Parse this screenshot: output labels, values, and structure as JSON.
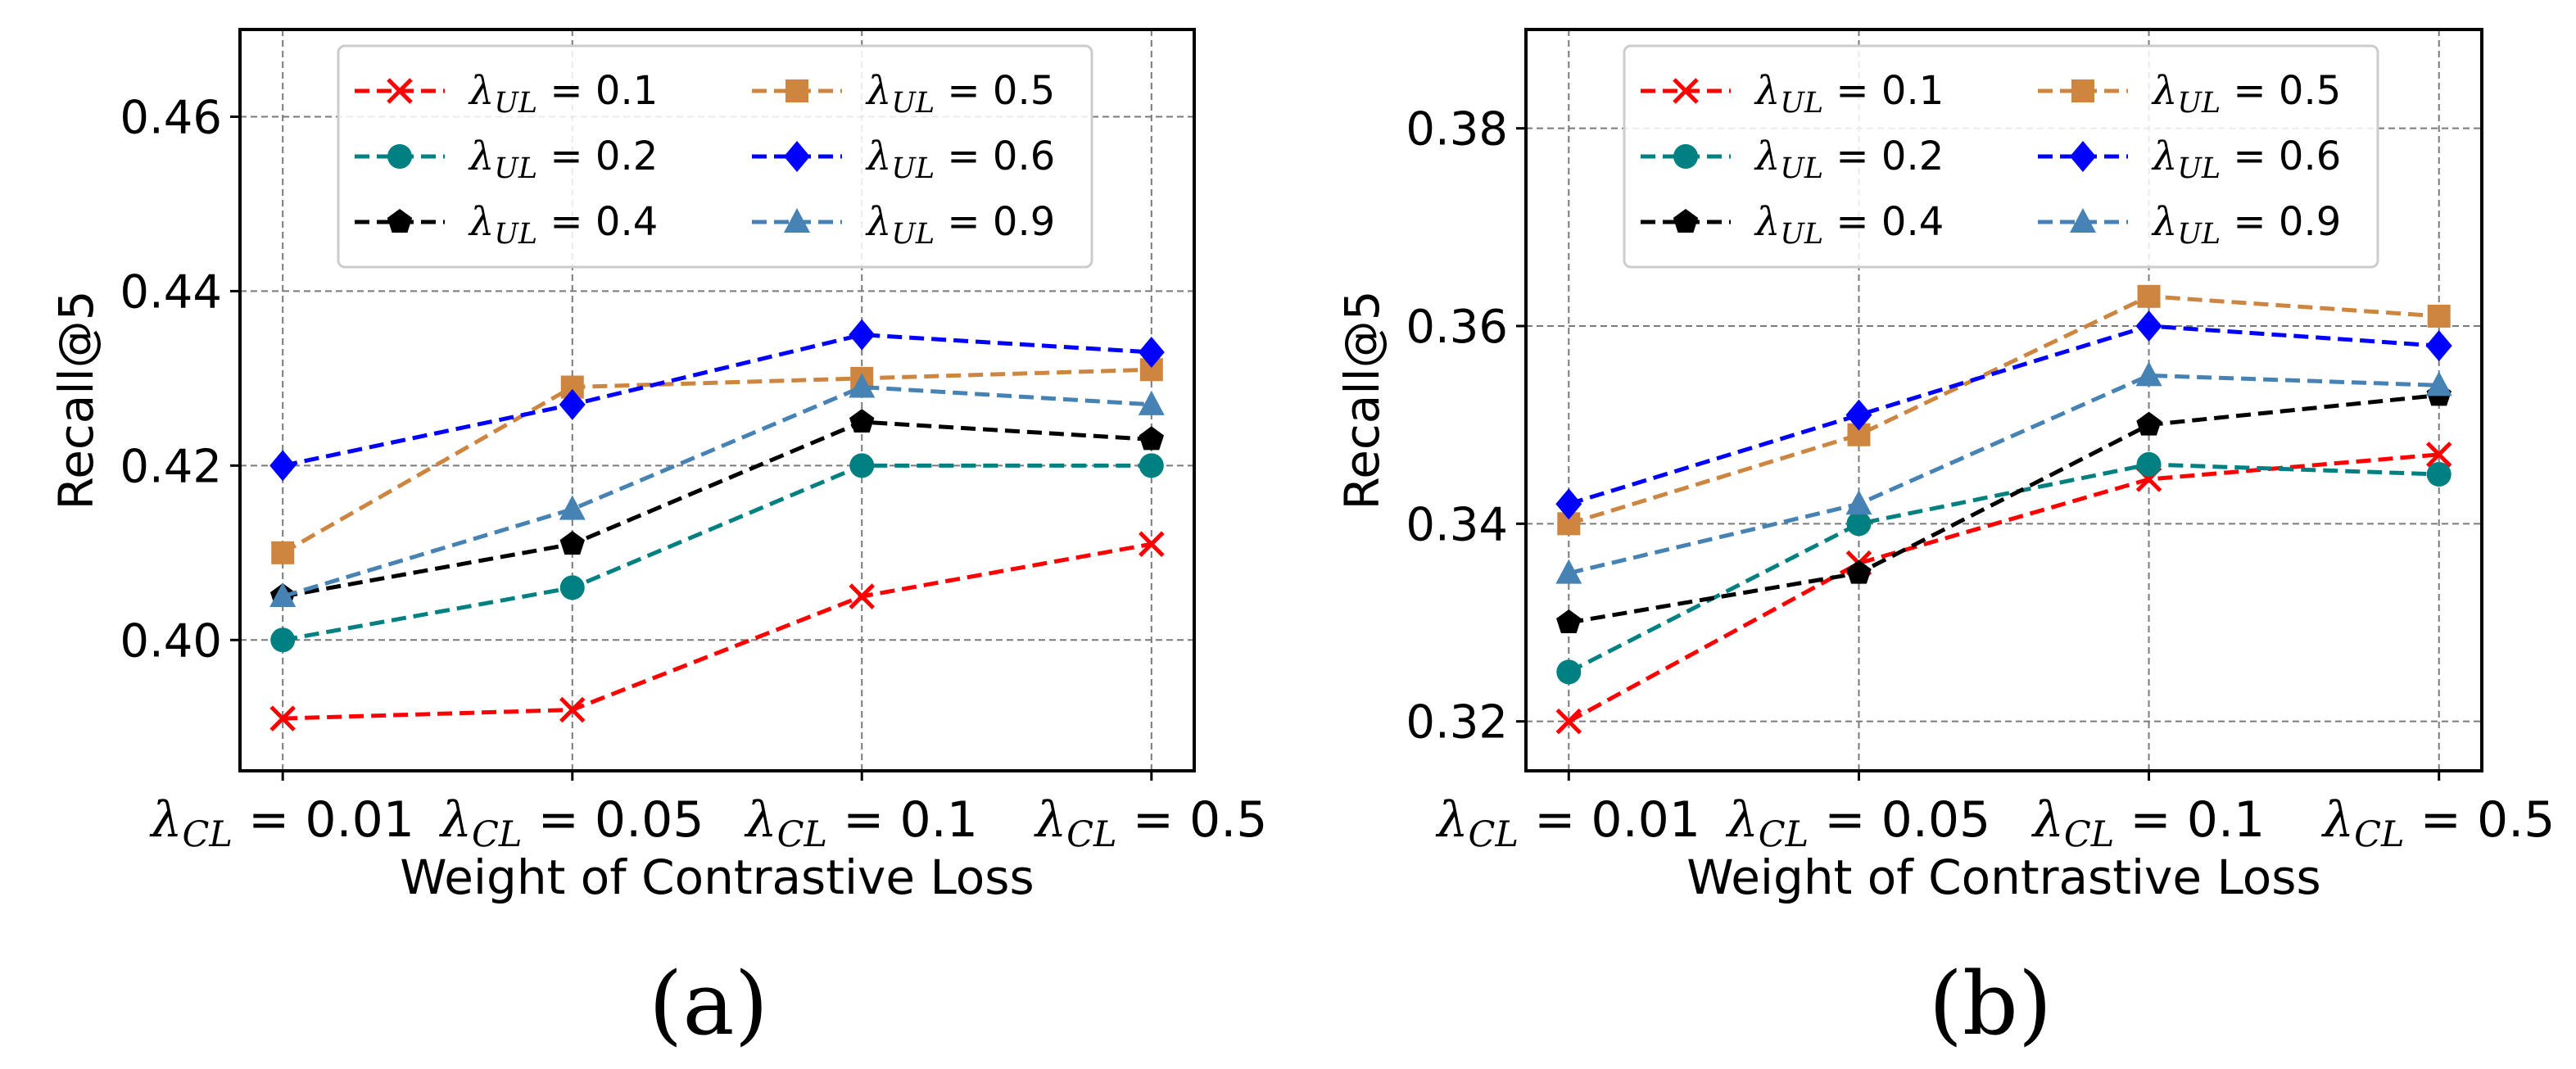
{
  "chart_data": [
    {
      "type": "line",
      "panel": "(a)",
      "xlabel": "Weight of Contrastive Loss",
      "ylabel": "Recall@5",
      "categories": [
        {
          "sym": "λ",
          "sub": "CL",
          "rest": " = 0.01"
        },
        {
          "sym": "λ",
          "sub": "CL",
          "rest": " = 0.05"
        },
        {
          "sym": "λ",
          "sub": "CL",
          "rest": " = 0.1"
        },
        {
          "sym": "λ",
          "sub": "CL",
          "rest": " = 0.5"
        }
      ],
      "ylim": [
        0.385,
        0.47
      ],
      "yticks": [
        0.4,
        0.42,
        0.44,
        0.46
      ],
      "ytick_labels": [
        "0.40",
        "0.42",
        "0.44",
        "0.46"
      ],
      "grid": true,
      "legend_position": "top",
      "series": [
        {
          "name": "λUL = 0.1",
          "sym": "λ",
          "sub": "UL",
          "rest": " = 0.1",
          "color": "#ff0000",
          "marker": "x",
          "values": [
            0.391,
            0.392,
            0.405,
            0.411
          ]
        },
        {
          "name": "λUL = 0.2",
          "sym": "λ",
          "sub": "UL",
          "rest": " = 0.2",
          "color": "#008080",
          "marker": "circle",
          "values": [
            0.4,
            0.406,
            0.42,
            0.42
          ]
        },
        {
          "name": "λUL = 0.4",
          "sym": "λ",
          "sub": "UL",
          "rest": " = 0.4",
          "color": "#000000",
          "marker": "pentagon",
          "values": [
            0.405,
            0.411,
            0.425,
            0.423
          ]
        },
        {
          "name": "λUL = 0.5",
          "sym": "λ",
          "sub": "UL",
          "rest": " = 0.5",
          "color": "#cd853f",
          "marker": "square",
          "values": [
            0.41,
            0.429,
            0.43,
            0.431
          ]
        },
        {
          "name": "λUL = 0.6",
          "sym": "λ",
          "sub": "UL",
          "rest": " = 0.6",
          "color": "#0000ff",
          "marker": "diamond",
          "values": [
            0.42,
            0.427,
            0.435,
            0.433
          ]
        },
        {
          "name": "λUL = 0.9",
          "sym": "λ",
          "sub": "UL",
          "rest": " = 0.9",
          "color": "#4682b4",
          "marker": "triangle",
          "values": [
            0.405,
            0.415,
            0.429,
            0.427
          ]
        }
      ]
    },
    {
      "type": "line",
      "panel": "(b)",
      "xlabel": "Weight of Contrastive Loss",
      "ylabel": "Recall@5",
      "categories": [
        {
          "sym": "λ",
          "sub": "CL",
          "rest": " = 0.01"
        },
        {
          "sym": "λ",
          "sub": "CL",
          "rest": " = 0.05"
        },
        {
          "sym": "λ",
          "sub": "CL",
          "rest": " = 0.1"
        },
        {
          "sym": "λ",
          "sub": "CL",
          "rest": " = 0.5"
        }
      ],
      "ylim": [
        0.315,
        0.39
      ],
      "yticks": [
        0.32,
        0.34,
        0.36,
        0.38
      ],
      "ytick_labels": [
        "0.32",
        "0.34",
        "0.36",
        "0.38"
      ],
      "grid": true,
      "legend_position": "top",
      "series": [
        {
          "name": "λUL = 0.1",
          "sym": "λ",
          "sub": "UL",
          "rest": " = 0.1",
          "color": "#ff0000",
          "marker": "x",
          "values": [
            0.32,
            0.336,
            0.3445,
            0.347
          ]
        },
        {
          "name": "λUL = 0.2",
          "sym": "λ",
          "sub": "UL",
          "rest": " = 0.2",
          "color": "#008080",
          "marker": "circle",
          "values": [
            0.325,
            0.34,
            0.346,
            0.345
          ]
        },
        {
          "name": "λUL = 0.4",
          "sym": "λ",
          "sub": "UL",
          "rest": " = 0.4",
          "color": "#000000",
          "marker": "pentagon",
          "values": [
            0.33,
            0.335,
            0.35,
            0.353
          ]
        },
        {
          "name": "λUL = 0.5",
          "sym": "λ",
          "sub": "UL",
          "rest": " = 0.5",
          "color": "#cd853f",
          "marker": "square",
          "values": [
            0.34,
            0.349,
            0.363,
            0.361
          ]
        },
        {
          "name": "λUL = 0.6",
          "sym": "λ",
          "sub": "UL",
          "rest": " = 0.6",
          "color": "#0000ff",
          "marker": "diamond",
          "values": [
            0.342,
            0.351,
            0.36,
            0.358
          ]
        },
        {
          "name": "λUL = 0.9",
          "sym": "λ",
          "sub": "UL",
          "rest": " = 0.9",
          "color": "#4682b4",
          "marker": "triangle",
          "values": [
            0.335,
            0.342,
            0.355,
            0.354
          ]
        }
      ]
    }
  ]
}
